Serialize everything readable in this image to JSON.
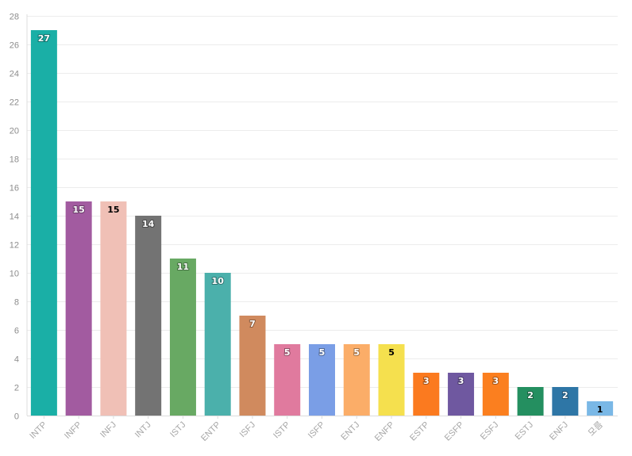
{
  "chart_data": {
    "type": "bar",
    "title": "",
    "xlabel": "",
    "ylabel": "",
    "ylim": [
      0,
      28
    ],
    "ytick_step": 2,
    "grid": true,
    "legend": "none",
    "categories": [
      "INTP",
      "INFP",
      "INFJ",
      "INTJ",
      "ISTJ",
      "ENTP",
      "ISFJ",
      "ISTP",
      "ISFP",
      "ENTJ",
      "ENFP",
      "ESTP",
      "ESFP",
      "ESFJ",
      "ESTJ",
      "ENFJ",
      "모름"
    ],
    "values": [
      27,
      15,
      15,
      14,
      11,
      10,
      7,
      5,
      5,
      5,
      5,
      3,
      3,
      3,
      2,
      2,
      1
    ],
    "colors": [
      "#1aafa6",
      "#a25ba0",
      "#f0c0b6",
      "#737373",
      "#68a963",
      "#4bb0ab",
      "#d08a5e",
      "#e07a9e",
      "#7a9ee6",
      "#fbad68",
      "#f5e04e",
      "#fb7a1f",
      "#6f58a0",
      "#fb7f1f",
      "#248f60",
      "#2e76a6",
      "#7ab8e6"
    ],
    "label_colors": [
      "#ffffff",
      "#ffffff",
      "#000000",
      "#ffffff",
      "#ffffff",
      "#ffffff",
      "#ffffff",
      "#ffffff",
      "#ffffff",
      "#ffffff",
      "#000000",
      "#ffffff",
      "#ffffff",
      "#ffffff",
      "#ffffff",
      "#ffffff",
      "#000000"
    ]
  }
}
